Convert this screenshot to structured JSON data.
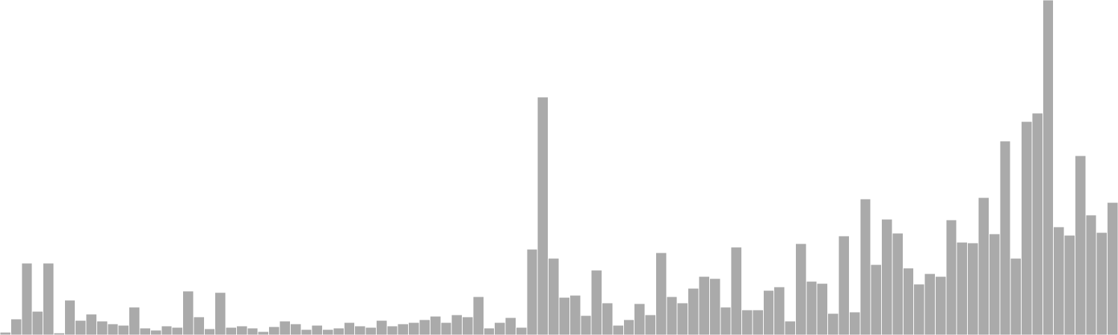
{
  "colors": {
    "background": "#ffffff",
    "bar": "#aaaaaa"
  },
  "chart_data": {
    "type": "bar",
    "grid": false,
    "axes_visible": false,
    "ylim": [
      0,
      480
    ],
    "values": [
      4,
      23,
      103,
      34,
      103,
      3,
      50,
      21,
      30,
      20,
      16,
      14,
      40,
      10,
      7,
      13,
      11,
      63,
      26,
      9,
      61,
      11,
      13,
      10,
      5,
      12,
      20,
      16,
      8,
      14,
      8,
      10,
      18,
      13,
      11,
      21,
      13,
      16,
      18,
      22,
      27,
      18,
      29,
      26,
      55,
      10,
      18,
      25,
      11,
      123,
      341,
      110,
      54,
      57,
      28,
      93,
      46,
      14,
      22,
      45,
      29,
      118,
      55,
      46,
      67,
      84,
      81,
      40,
      126,
      36,
      36,
      64,
      69,
      20,
      131,
      77,
      74,
      31,
      142,
      33,
      195,
      101,
      166,
      146,
      96,
      73,
      88,
      84,
      165,
      133,
      132,
      197,
      145,
      278,
      110,
      306,
      318,
      480,
      155,
      143,
      257,
      172,
      147,
      190
    ]
  }
}
